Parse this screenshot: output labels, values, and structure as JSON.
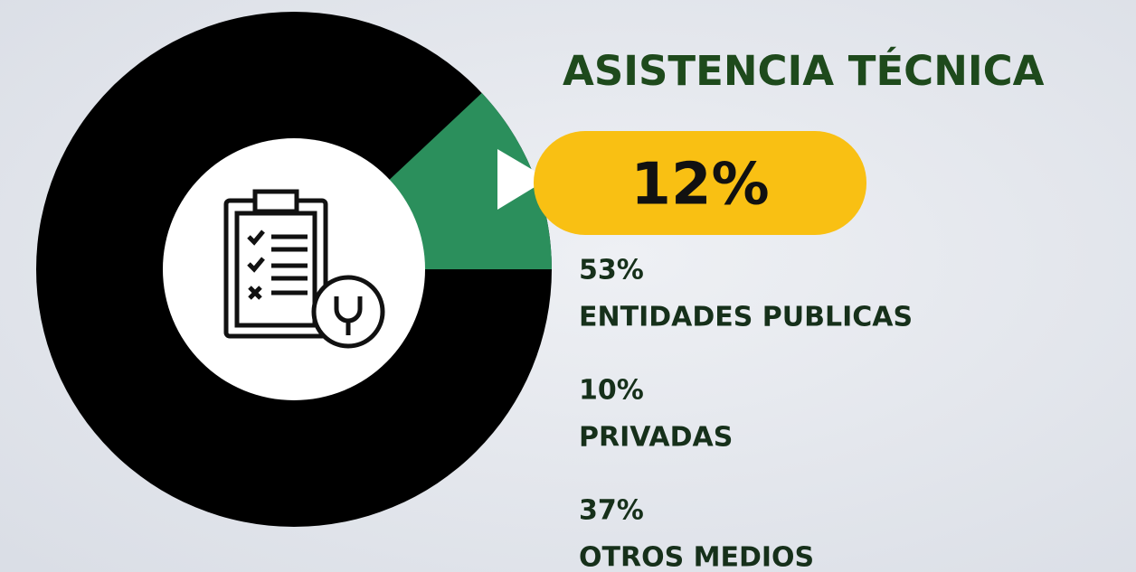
{
  "chart_data": {
    "type": "donut",
    "title": "ASISTENCIA TÉCNICA",
    "values": [
      12
    ],
    "value_labels": [
      "12%"
    ],
    "color": "#2b8f5c",
    "ring_color": "#000000",
    "breakdown": [
      {
        "label": "53%",
        "name": "ENTIDADES PUBLICAS"
      },
      {
        "label": "10%",
        "name": "PRIVADAS"
      },
      {
        "label": "37%",
        "name": "OTROS MEDIOS"
      }
    ]
  }
}
